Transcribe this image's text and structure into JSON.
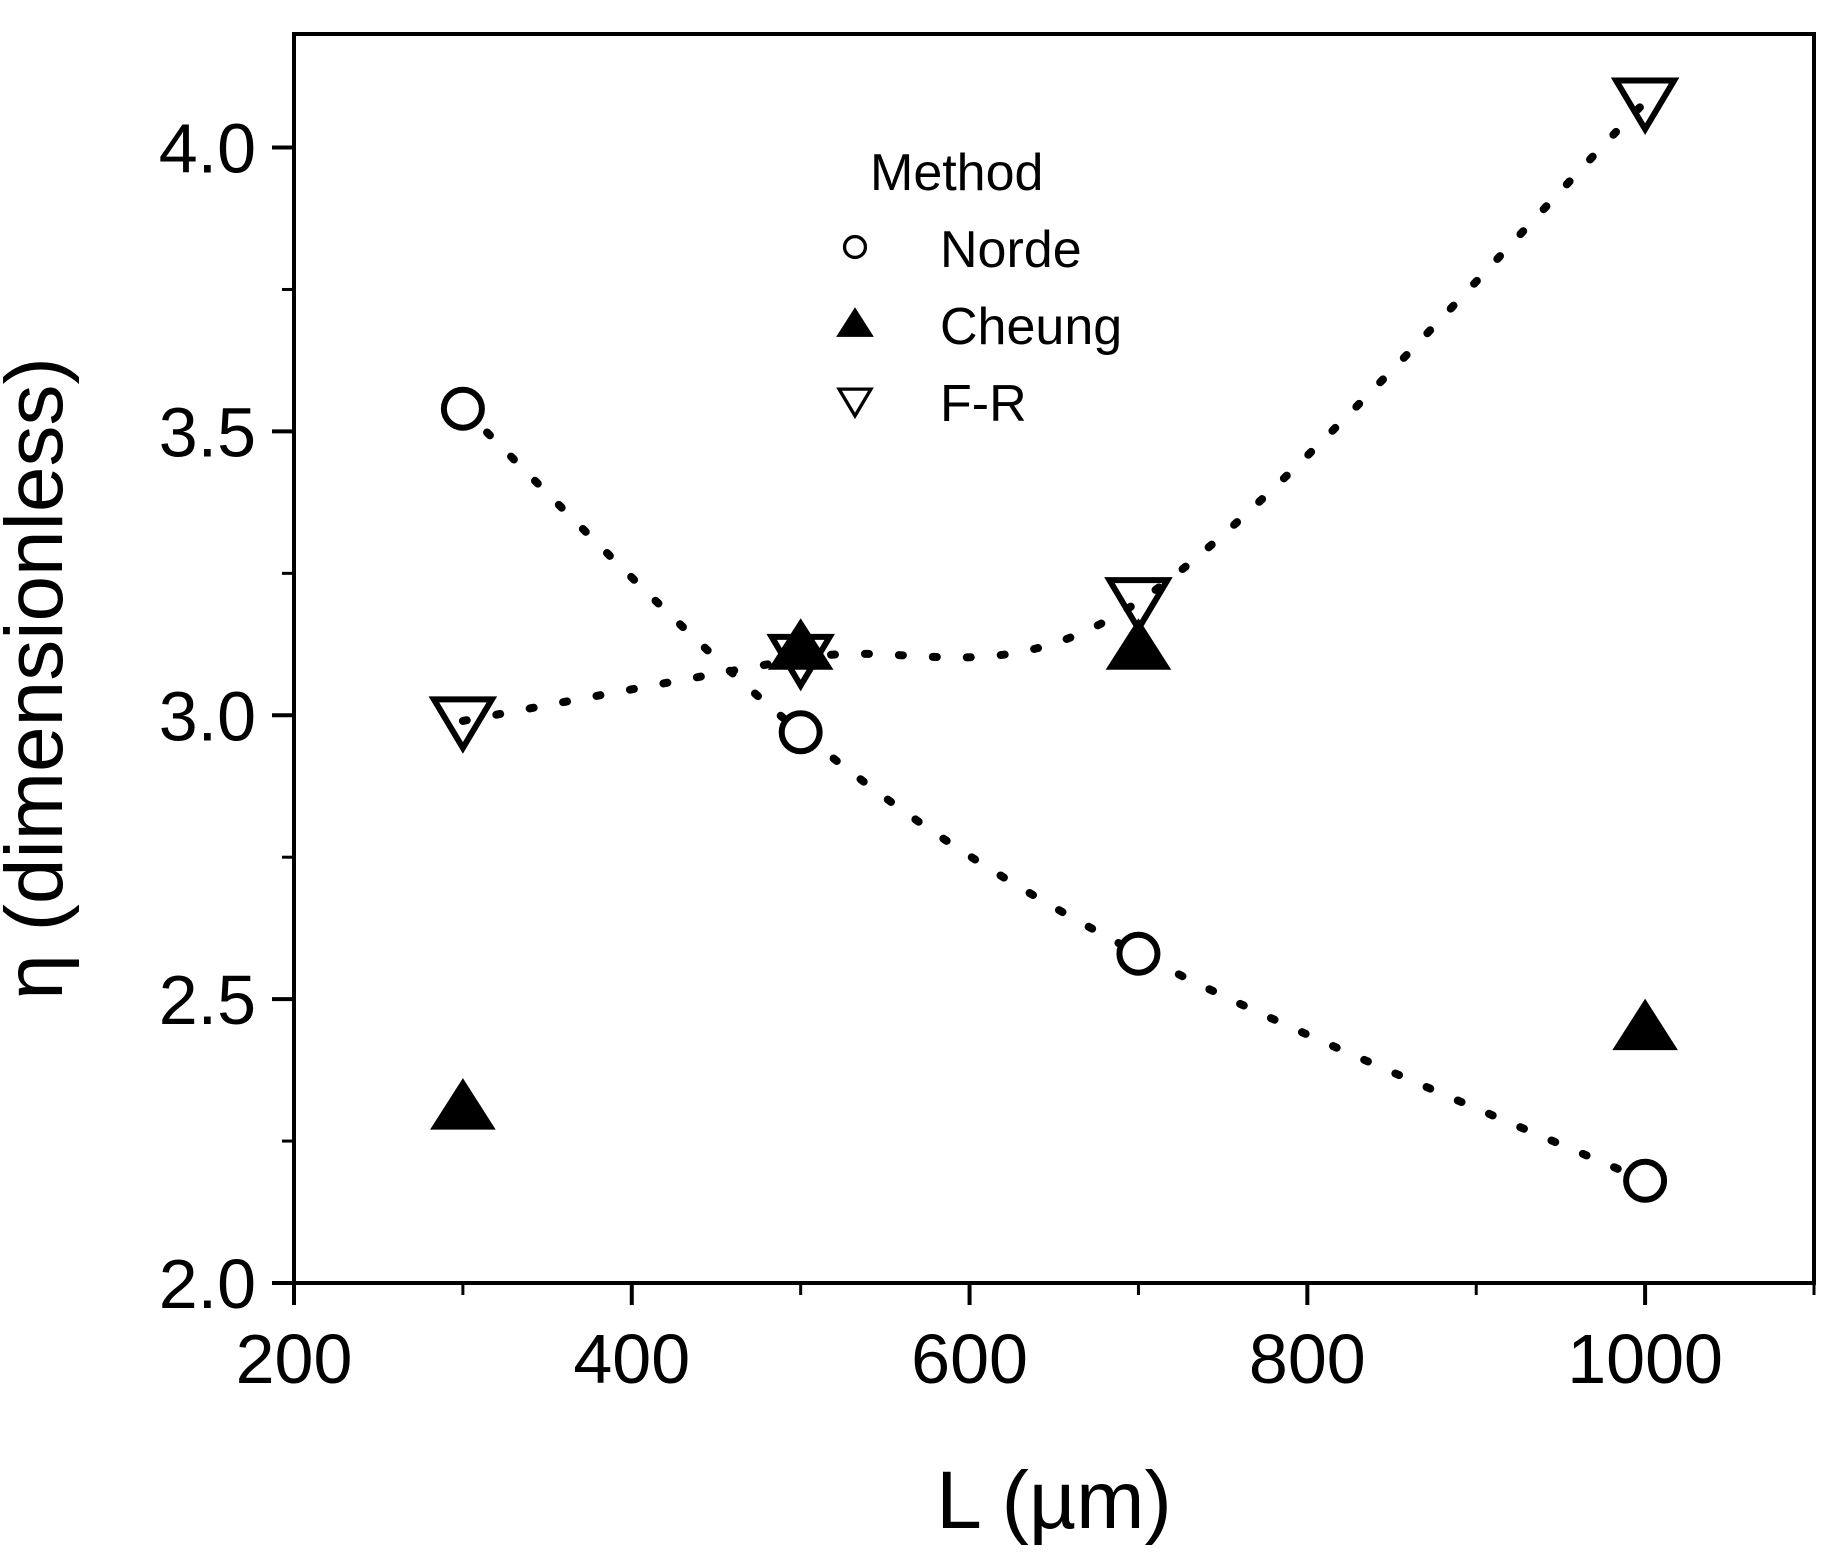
{
  "chart_data": {
    "type": "scatter",
    "xlabel": "L (µm)",
    "ylabel": "η (dimensionless)",
    "xlim": [
      200,
      1100
    ],
    "ylim": [
      2.0,
      4.2
    ],
    "x_ticks": [
      200,
      400,
      600,
      800,
      1000
    ],
    "x_minor_ticks": [
      300,
      500,
      700,
      900,
      1100
    ],
    "y_ticks": [
      2.0,
      2.5,
      3.0,
      3.5,
      4.0
    ],
    "y_tick_labels": [
      "2.0",
      "2.5",
      "3.0",
      "3.5",
      "4.0"
    ],
    "y_minor_ticks": [
      2.25,
      2.75,
      3.25,
      3.75
    ],
    "legend": {
      "title": "Method",
      "placement": "top-center"
    },
    "series": [
      {
        "name": "Norde",
        "marker": "open-circle",
        "x": [
          300,
          500,
          700,
          1000
        ],
        "y": [
          3.54,
          2.97,
          2.58,
          2.18
        ],
        "fit": "dotted"
      },
      {
        "name": "Cheung",
        "marker": "filled-triangle-up",
        "x": [
          300,
          500,
          700,
          1000
        ],
        "y": [
          2.31,
          3.12,
          3.12,
          2.45
        ],
        "fit": "none"
      },
      {
        "name": "F-R",
        "marker": "open-triangle-down",
        "x": [
          300,
          500,
          700,
          1000
        ],
        "y": [
          2.99,
          3.1,
          3.2,
          4.08
        ],
        "fit": "dotted"
      }
    ]
  }
}
